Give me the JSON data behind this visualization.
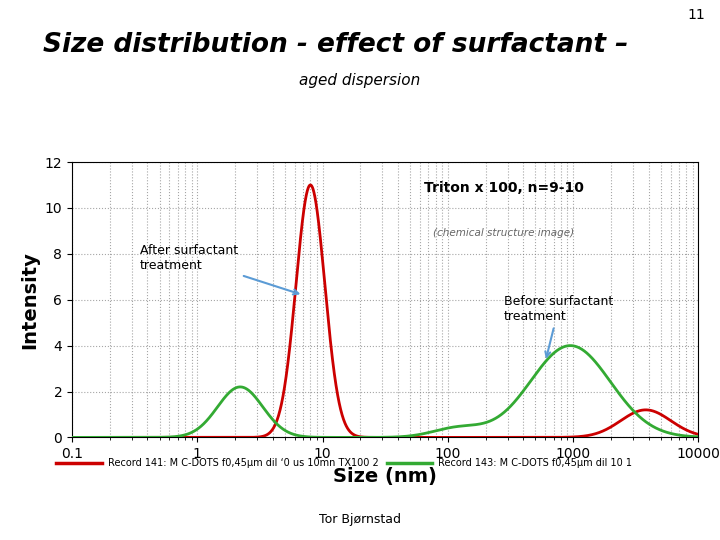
{
  "title": "Size distribution - effect of surfactant –",
  "subtitle": "aged dispersion",
  "xlabel": "Size (nm)",
  "ylabel": "Intensity",
  "slide_number": "11",
  "background_color": "#ffffff",
  "plot_bg_color": "#ffffff",
  "title_color": "#000000",
  "subtitle_color": "#000000",
  "ylim": [
    0,
    12
  ],
  "yticks": [
    0,
    2,
    4,
    6,
    8,
    10,
    12
  ],
  "red_line_color": "#cc0000",
  "green_line_color": "#33aa33",
  "gold_bar_color": "#c8a84b",
  "arrow_color": "#5b9bd5",
  "triton_box_color": "#e8e4d0",
  "legend_label_red": "Record 141: M C-DOTS f0,45µm dil ‘0 us 10mn TX100 2",
  "legend_label_green": "Record 143: M C-DOTS f0,45µm dil 10 1",
  "footer_text": "Tor Bjørnstad",
  "triton_text": "Triton x 100, n=9-10"
}
